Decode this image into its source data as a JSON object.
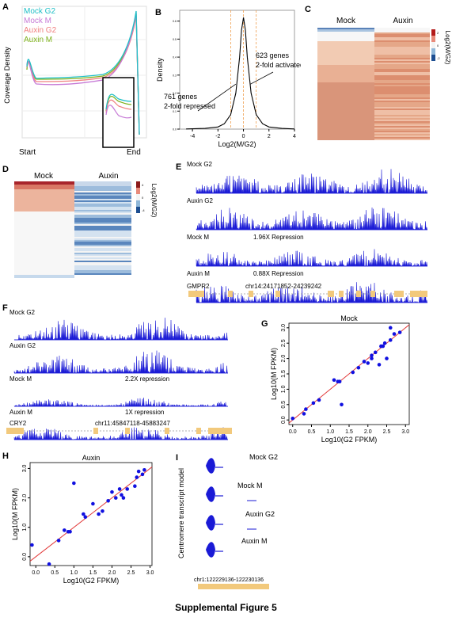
{
  "panel_letters": [
    "A",
    "B",
    "C",
    "D",
    "E",
    "F",
    "G",
    "H",
    "I"
  ],
  "caption": "Supplemental Figure 5",
  "colors": {
    "mock_g2": "#1fbfc6",
    "mock_m": "#c77ad6",
    "auxin_g2": "#f08080",
    "auxin_m": "#7fb21d",
    "track": "#1a1ad6",
    "gene": "#f2c97c",
    "fit": "#e23b3b",
    "point": "#1010e0"
  },
  "panelA": {
    "legend": [
      "Mock G2",
      "Mock M",
      "Auxin G2",
      "Auxin M"
    ],
    "ylabel": "Coverage Density",
    "xticks": [
      "Start",
      "End"
    ]
  },
  "chart_data": [
    {
      "type": "line",
      "title": "",
      "xlabel": "Log2(M/G2)",
      "ylabel": "Density",
      "xticks": [
        "-4",
        "-2",
        "0",
        "2",
        "4"
      ],
      "yticks": [
        "0.0",
        "0.1",
        "0.2",
        "0.3",
        "0.4",
        "0.5",
        "0.6"
      ],
      "xlim": [
        -5,
        4
      ],
      "ylim": [
        0,
        0.66
      ],
      "series": [
        {
          "x": [
            -4.5,
            -3,
            -2,
            -1.5,
            -1,
            -0.6,
            -0.3,
            -0.15,
            0,
            0.15,
            0.3,
            0.6,
            1,
            1.5,
            2,
            3,
            4
          ],
          "y": [
            0.001,
            0.004,
            0.012,
            0.03,
            0.08,
            0.2,
            0.4,
            0.55,
            0.62,
            0.55,
            0.4,
            0.2,
            0.08,
            0.03,
            0.012,
            0.004,
            0.001
          ]
        }
      ],
      "vlines": [
        -1,
        0,
        1
      ],
      "annotations": [
        "761 genes\n2-fold repressed",
        "623 genes\n2-fold activated"
      ]
    },
    {
      "type": "scatter",
      "title": "Mock",
      "xlabel": "Log10(G2 FPKM)",
      "ylabel": "Log10(M FPKM)",
      "xticks": [
        "0.0",
        "0.5",
        "1.0",
        "1.5",
        "2.0",
        "2.5",
        "3.0"
      ],
      "yticks": [
        "0.0",
        "0.5",
        "1.0",
        "1.5",
        "2.0",
        "2.5",
        "3.0"
      ],
      "xlim": [
        -0.1,
        3.1
      ],
      "ylim": [
        -0.15,
        3.15
      ],
      "x": [
        0.0,
        0.3,
        0.35,
        0.55,
        0.7,
        1.1,
        1.2,
        1.3,
        1.25,
        1.6,
        1.75,
        1.9,
        2.0,
        2.1,
        2.1,
        2.2,
        2.3,
        2.35,
        2.4,
        2.45,
        2.5,
        2.6,
        2.6,
        2.7,
        2.85
      ],
      "y": [
        0.05,
        0.2,
        0.35,
        0.55,
        0.65,
        1.3,
        1.25,
        0.5,
        1.25,
        1.55,
        1.7,
        1.9,
        1.85,
        2.0,
        2.1,
        2.2,
        1.8,
        2.4,
        2.4,
        2.5,
        2.0,
        2.6,
        3.0,
        2.8,
        2.85
      ]
    },
    {
      "type": "scatter",
      "title": "Auxin",
      "xlabel": "Log10(G2 FPKM)",
      "ylabel": "Log10(M FPKM)",
      "xticks": [
        "0.0",
        "0.5",
        "1.0",
        "1.5",
        "2.0",
        "2.5",
        "3.0"
      ],
      "yticks": [
        "0.0",
        "1.0",
        "2.0",
        "3.0"
      ],
      "xlim": [
        -0.15,
        3.05
      ],
      "ylim": [
        -0.3,
        3.2
      ],
      "x": [
        -0.1,
        0.6,
        0.75,
        0.85,
        0.9,
        1.25,
        1.3,
        1.5,
        1.65,
        1.75,
        1.9,
        2.0,
        2.1,
        2.2,
        2.25,
        2.3,
        2.4,
        2.6,
        2.65,
        2.7,
        2.8,
        2.85,
        0.35,
        1.0
      ],
      "y": [
        0.4,
        0.55,
        0.9,
        0.85,
        0.85,
        1.45,
        1.35,
        1.8,
        1.45,
        1.55,
        1.9,
        2.2,
        2.0,
        2.3,
        2.1,
        2.0,
        2.3,
        2.4,
        2.7,
        2.9,
        2.8,
        2.95,
        -0.25,
        2.5
      ]
    }
  ],
  "panelC": {
    "col_labels": [
      "Mock",
      "Auxin"
    ],
    "legend_label": "Log2(M/G2)",
    "ticks": [
      "2",
      "0",
      "-2"
    ]
  },
  "panelD": {
    "col_labels": [
      "Mock",
      "Auxin"
    ],
    "legend_label": "Log2(M/G2)",
    "ticks": [
      "4",
      "0",
      "-4"
    ]
  },
  "panelE": {
    "tracks": [
      {
        "label": "Mock G2",
        "note": ""
      },
      {
        "label": "Auxin G2",
        "note": ""
      },
      {
        "label": "Mock M",
        "note": "1.96X Repression"
      },
      {
        "label": "Auxin M",
        "note": "0.88X Repression"
      }
    ],
    "gene": "GMPR2",
    "coords": "chr14:24171852-24239242"
  },
  "panelF": {
    "tracks": [
      {
        "label": "Mock G2",
        "note": ""
      },
      {
        "label": "Auxin G2",
        "note": ""
      },
      {
        "label": "Mock M",
        "note": "2.2X repression"
      },
      {
        "label": "Auxin M",
        "note": "1X repression"
      }
    ],
    "gene": "CRY2",
    "coords": "chr11:45847118-45883247"
  },
  "panelI": {
    "ylabel": "Centromere transcript model",
    "tracks": [
      "Mock G2",
      "Mock M",
      "Auxin G2",
      "Auxin M"
    ],
    "coords": "chr1:122229136-122230136"
  }
}
